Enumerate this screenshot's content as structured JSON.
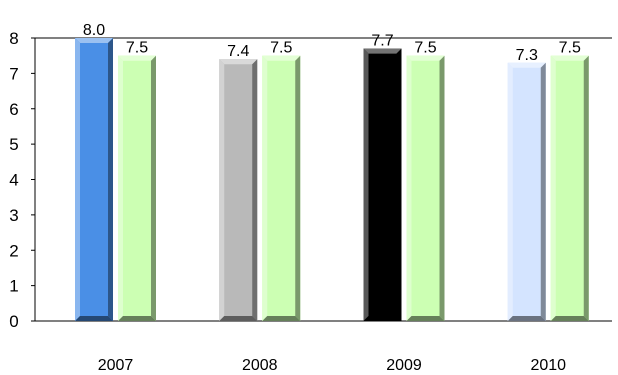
{
  "chart_data": {
    "type": "bar",
    "categories": [
      "2007",
      "2008",
      "2009",
      "2010"
    ],
    "ylim": [
      0,
      8
    ],
    "yticks": [
      "0",
      "1",
      "2",
      "3",
      "4",
      "5",
      "6",
      "7",
      "8"
    ],
    "grid": false,
    "legend": "none",
    "series": [
      {
        "values": [
          8.0,
          7.4,
          7.7,
          7.3
        ],
        "labels": [
          "8.0",
          "7.4",
          "7.7",
          "7.3"
        ],
        "colors": [
          "#4a8fe6",
          "#b9b9b9",
          "#000000",
          "#d4e4ff"
        ]
      },
      {
        "values": [
          7.5,
          7.5,
          7.5,
          7.5
        ],
        "labels": [
          "7.5",
          "7.5",
          "7.5",
          "7.5"
        ],
        "colors": [
          "#ccffb3",
          "#ccffb3",
          "#ccffb3",
          "#ccffb3"
        ]
      }
    ]
  }
}
